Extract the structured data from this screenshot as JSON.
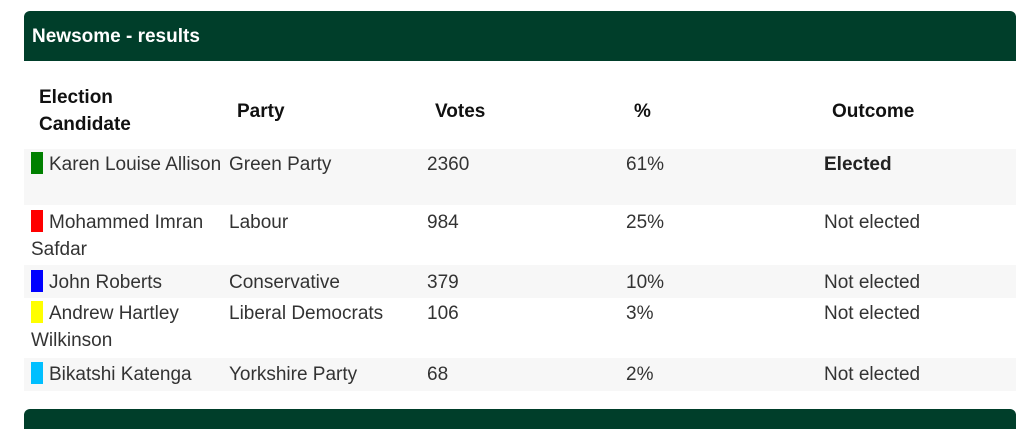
{
  "panel": {
    "title": "Newsome - results"
  },
  "table": {
    "headers": {
      "candidate_line1": "Election",
      "candidate_line2": "Candidate",
      "party": "Party",
      "votes": "Votes",
      "percent": "%",
      "outcome": "Outcome"
    },
    "rows": [
      {
        "candidate": "Karen Louise Allison",
        "party": "Green Party",
        "votes": "2360",
        "percent": "61%",
        "outcome": "Elected",
        "color": "#008000"
      },
      {
        "candidate": "Mohammed Imran Safdar",
        "party": "Labour",
        "votes": "984",
        "percent": "25%",
        "outcome": "Not elected",
        "color": "#ff0000"
      },
      {
        "candidate": "John Roberts",
        "party": "Conservative",
        "votes": "379",
        "percent": "10%",
        "outcome": "Not elected",
        "color": "#0000ff"
      },
      {
        "candidate": "Andrew Hartley Wilkinson",
        "party": "Liberal Democrats",
        "votes": "106",
        "percent": "3%",
        "outcome": "Not elected",
        "color": "#ffff00"
      },
      {
        "candidate": "Bikatshi Katenga",
        "party": "Yorkshire Party",
        "votes": "68",
        "percent": "2%",
        "outcome": "Not elected",
        "color": "#00bfff"
      }
    ]
  },
  "colors": {
    "header_bg": "#003e2a",
    "row_shade": "#f7f7f7"
  }
}
